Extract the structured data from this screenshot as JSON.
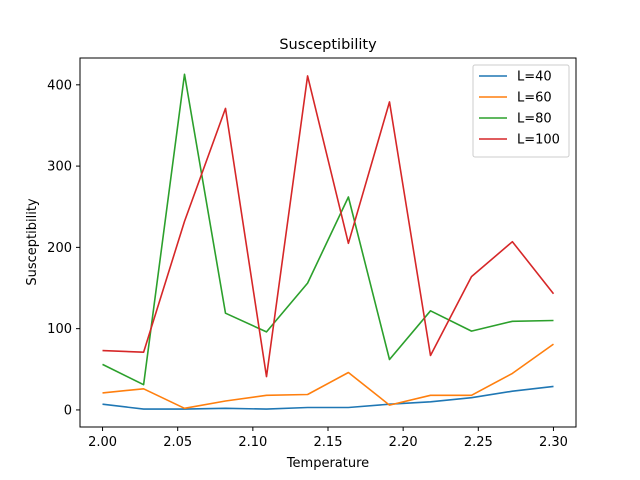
{
  "chart_data": {
    "type": "line",
    "title": "Susceptibility",
    "xlabel": "Temperature",
    "ylabel": "Susceptibility",
    "xlim": [
      1.985,
      2.315
    ],
    "ylim": [
      -21,
      433
    ],
    "xticks": [
      "2.00",
      "2.05",
      "2.10",
      "2.15",
      "2.20",
      "2.25",
      "2.30"
    ],
    "yticks": [
      "0",
      "100",
      "200",
      "300",
      "400"
    ],
    "x": [
      2.0,
      2.0273,
      2.0545,
      2.0818,
      2.1091,
      2.1364,
      2.1636,
      2.1909,
      2.2182,
      2.2455,
      2.2727,
      2.3
    ],
    "series": [
      {
        "name": "L=40",
        "color": "#1f77b4",
        "values": [
          7,
          1,
          1,
          2,
          1,
          3,
          3,
          7,
          10,
          15,
          23,
          29
        ]
      },
      {
        "name": "L=60",
        "color": "#ff7f0e",
        "values": [
          21,
          26,
          2,
          11,
          18,
          19,
          46,
          6,
          18,
          18,
          45,
          81
        ]
      },
      {
        "name": "L=80",
        "color": "#2ca02c",
        "values": [
          56,
          31,
          413,
          119,
          96,
          156,
          262,
          62,
          122,
          97,
          109,
          110
        ]
      },
      {
        "name": "L=100",
        "color": "#d62728",
        "values": [
          73,
          71,
          232,
          371,
          41,
          411,
          205,
          379,
          67,
          164,
          207,
          143
        ]
      }
    ],
    "grid": false,
    "legend_position": "top-right"
  }
}
